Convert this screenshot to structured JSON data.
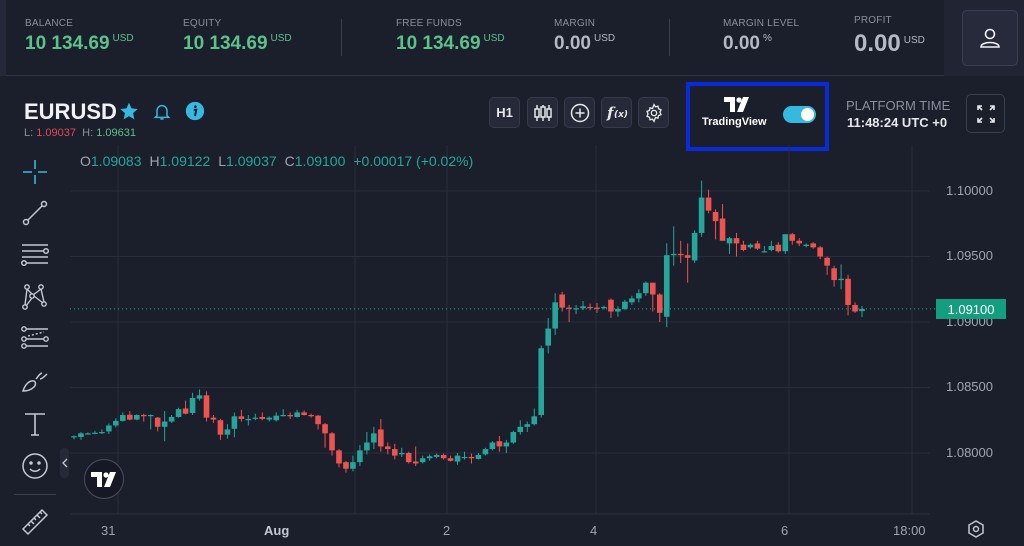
{
  "account": {
    "balance": {
      "label": "BALANCE",
      "value": "10 134.69",
      "unit": "USD"
    },
    "equity": {
      "label": "EQUITY",
      "value": "10 134.69",
      "unit": "USD"
    },
    "free_funds": {
      "label": "FREE FUNDS",
      "value": "10 134.69",
      "unit": "USD"
    },
    "margin": {
      "label": "MARGIN",
      "value": "0.00",
      "unit": "USD"
    },
    "margin_level": {
      "label": "MARGIN LEVEL",
      "value": "0.00",
      "unit": "%"
    },
    "profit": {
      "label": "PROFIT",
      "value": "0.00",
      "unit": "USD"
    }
  },
  "instrument": {
    "symbol": "EURUSD",
    "low_label": "L:",
    "low": "1.09037",
    "high_label": "H:",
    "high": "1.09631"
  },
  "toolbar": {
    "timeframe": "H1",
    "icons": [
      "candles-icon",
      "add-icon",
      "indicators-icon",
      "settings-icon"
    ],
    "tradingview_label": "TradingView",
    "tradingview_enabled": true,
    "platform_time_label": "PLATFORM TIME",
    "platform_time": "11:48:24 UTC +0"
  },
  "ohlc": {
    "o_label": "O",
    "o": "1.09083",
    "h_label": "H",
    "h": "1.09122",
    "l_label": "L",
    "l": "1.09037",
    "c_label": "C",
    "c": "1.09100",
    "change": "+0.00017 (+0.02%)"
  },
  "drawing_tools": [
    "crosshair-icon",
    "trend-line-icon",
    "horizontal-lines-icon",
    "pattern-icon",
    "fib-icon",
    "brush-icon",
    "text-icon",
    "emoji-icon",
    "ruler-icon"
  ],
  "colors": {
    "up": "#26a69a",
    "down": "#ef5350",
    "accent": "#36b9e0",
    "highlight_box": "#0a2bd8",
    "price_tag": "#139e80"
  },
  "chart_data": {
    "type": "candlestick",
    "symbol": "EURUSD",
    "timeframe": "H1",
    "y_ticks": [
      "1.10000",
      "1.09500",
      "1.09000",
      "1.08500",
      "1.08000"
    ],
    "x_ticks": [
      "31",
      "Aug",
      "2",
      "4",
      "6",
      "18:00"
    ],
    "last_price": "1.09100",
    "ylim": [
      1.0758,
      1.1063
    ],
    "candles": [
      [
        1.08122,
        1.08128,
        1.08135,
        1.08105
      ],
      [
        1.08122,
        1.0815,
        1.0816,
        1.081
      ],
      [
        1.08148,
        1.0815,
        1.08158,
        1.0814
      ],
      [
        1.0815,
        1.08155,
        1.0817,
        1.08143
      ],
      [
        1.08155,
        1.0816,
        1.0818,
        1.08145
      ],
      [
        1.08165,
        1.0821,
        1.08225,
        1.08145
      ],
      [
        1.0821,
        1.08245,
        1.08265,
        1.08195
      ],
      [
        1.08245,
        1.0829,
        1.0831,
        1.0824
      ],
      [
        1.08292,
        1.08255,
        1.0832,
        1.0825
      ],
      [
        1.08255,
        1.0829,
        1.08295,
        1.0825
      ],
      [
        1.0829,
        1.08285,
        1.083,
        1.0824
      ],
      [
        1.08285,
        1.0829,
        1.08295,
        1.0818
      ],
      [
        1.0827,
        1.082,
        1.08275,
        1.08165
      ],
      [
        1.082,
        1.0824,
        1.0832,
        1.0809
      ],
      [
        1.0824,
        1.08275,
        1.0829,
        1.0823
      ],
      [
        1.08275,
        1.08335,
        1.08345,
        1.0827
      ],
      [
        1.0834,
        1.083,
        1.084,
        1.08295
      ],
      [
        1.08305,
        1.0842,
        1.0846,
        1.0829
      ],
      [
        1.08415,
        1.0844,
        1.08485,
        1.084
      ],
      [
        1.0844,
        1.0827,
        1.0847,
        1.0824
      ],
      [
        1.0827,
        1.08255,
        1.0829,
        1.0823
      ],
      [
        1.0825,
        1.0814,
        1.0826,
        1.081
      ],
      [
        1.0814,
        1.0818,
        1.0822,
        1.0811
      ],
      [
        1.08185,
        1.0828,
        1.0831,
        1.0812
      ],
      [
        1.0828,
        1.0826,
        1.0833,
        1.0824
      ],
      [
        1.0825,
        1.0826,
        1.0829,
        1.0821
      ],
      [
        1.08265,
        1.0827,
        1.083,
        1.0825
      ],
      [
        1.08275,
        1.0826,
        1.0831,
        1.0825
      ],
      [
        1.08255,
        1.0827,
        1.0828,
        1.0824
      ],
      [
        1.0825,
        1.08285,
        1.0831,
        1.0824
      ],
      [
        1.08285,
        1.0829,
        1.08335,
        1.0828
      ],
      [
        1.0829,
        1.0828,
        1.0831,
        1.0826
      ],
      [
        1.08275,
        1.0831,
        1.0833,
        1.0827
      ],
      [
        1.0831,
        1.0829,
        1.08325,
        1.08285
      ],
      [
        1.0829,
        1.08285,
        1.083,
        1.0827
      ],
      [
        1.08285,
        1.0822,
        1.0829,
        1.0818
      ],
      [
        1.0822,
        1.0815,
        1.0823,
        1.0804
      ],
      [
        1.0815,
        1.0802,
        1.0816,
        1.0798
      ],
      [
        1.0802,
        1.0792,
        1.0803,
        1.0789
      ],
      [
        1.0793,
        1.0788,
        1.0794,
        1.0785
      ],
      [
        1.0788,
        1.0793,
        1.0798,
        1.0786
      ],
      [
        1.0793,
        1.0802,
        1.0806,
        1.079
      ],
      [
        1.0802,
        1.0808,
        1.0816,
        1.0799
      ],
      [
        1.0808,
        1.0815,
        1.082,
        1.0803
      ],
      [
        1.0818,
        1.0805,
        1.0826,
        1.0801
      ],
      [
        1.0805,
        1.0803,
        1.0808,
        1.0799
      ],
      [
        1.0803,
        1.0798,
        1.0807,
        1.0795
      ],
      [
        1.0799,
        1.08,
        1.0804,
        1.0797
      ],
      [
        1.08,
        1.0793,
        1.0801,
        1.0792
      ],
      [
        1.07935,
        1.0792,
        1.0805,
        1.079
      ],
      [
        1.0793,
        1.0796,
        1.0798,
        1.0792
      ],
      [
        1.0796,
        1.07975,
        1.0799,
        1.0794
      ],
      [
        1.0797,
        1.07985,
        1.07995,
        1.0796
      ],
      [
        1.07985,
        1.0796,
        1.07995,
        1.0795
      ],
      [
        1.0796,
        1.0794,
        1.0798,
        1.07935
      ],
      [
        1.07935,
        1.0798,
        1.08,
        1.0791
      ],
      [
        1.0797,
        1.0797,
        1.0801,
        1.0795
      ],
      [
        1.0797,
        1.0796,
        1.07995,
        1.0792
      ],
      [
        1.07955,
        1.07985,
        1.08,
        1.0795
      ],
      [
        1.0799,
        1.0803,
        1.0804,
        1.0798
      ],
      [
        1.0803,
        1.0808,
        1.0809,
        1.0802
      ],
      [
        1.0809,
        1.0805,
        1.0813,
        1.0801
      ],
      [
        1.0805,
        1.0808,
        1.081,
        1.08
      ],
      [
        1.0808,
        1.0816,
        1.0817,
        1.0807
      ],
      [
        1.0816,
        1.082,
        1.0825,
        1.0814
      ],
      [
        1.082,
        1.0822,
        1.0824,
        1.0816
      ],
      [
        1.0822,
        1.0828,
        1.0834,
        1.0821
      ],
      [
        1.0829,
        1.088,
        1.0882,
        1.0827
      ],
      [
        1.0882,
        1.0895,
        1.0903,
        1.0876
      ],
      [
        1.0895,
        1.0915,
        1.0922,
        1.089
      ],
      [
        1.0921,
        1.0911,
        1.0923,
        1.0908
      ],
      [
        1.0911,
        1.09105,
        1.0913,
        1.09
      ],
      [
        1.091,
        1.09105,
        1.0913,
        1.0906
      ],
      [
        1.09105,
        1.0912,
        1.0916,
        1.0909
      ],
      [
        1.09115,
        1.0911,
        1.0914,
        1.0909
      ],
      [
        1.0911,
        1.091,
        1.09145,
        1.0907
      ],
      [
        1.0911,
        1.09115,
        1.09125,
        1.09095
      ],
      [
        1.0917,
        1.0908,
        1.0918,
        1.0903
      ],
      [
        1.0908,
        1.091,
        1.0912,
        1.0904
      ],
      [
        1.091,
        1.09155,
        1.0917,
        1.0909
      ],
      [
        1.0915,
        1.0918,
        1.092,
        1.0913
      ],
      [
        1.0918,
        1.0922,
        1.0925,
        1.0915
      ],
      [
        1.0922,
        1.093,
        1.0931,
        1.092
      ],
      [
        1.093,
        1.0921,
        1.093,
        1.0908
      ],
      [
        1.0921,
        1.0907,
        1.0922,
        1.09
      ],
      [
        1.0904,
        1.0951,
        1.096,
        1.0896
      ],
      [
        1.0951,
        1.0952,
        1.0973,
        1.0943
      ],
      [
        1.0952,
        1.0951,
        1.0962,
        1.0945
      ],
      [
        1.0951,
        1.0949,
        1.096,
        1.093
      ],
      [
        1.0947,
        1.0968,
        1.097,
        1.0945
      ],
      [
        1.0968,
        1.0995,
        1.1008,
        1.0965
      ],
      [
        1.0995,
        1.0985,
        1.1001,
        1.0983
      ],
      [
        1.0984,
        1.0977,
        1.0986,
        1.0963
      ],
      [
        1.0979,
        1.0962,
        1.099,
        1.0962
      ],
      [
        1.096,
        1.0964,
        1.0965,
        1.0952
      ],
      [
        1.0964,
        1.096,
        1.0968,
        1.095
      ],
      [
        1.0959,
        1.0955,
        1.0962,
        1.0954
      ],
      [
        1.0957,
        1.0959,
        1.096,
        1.0956
      ],
      [
        1.096,
        1.0956,
        1.0962,
        1.0955
      ],
      [
        1.0954,
        1.0954,
        1.0958,
        1.0953
      ],
      [
        1.0955,
        1.0958,
        1.0962,
        1.0954
      ],
      [
        1.0959,
        1.0954,
        1.0961,
        1.0953
      ],
      [
        1.0954,
        1.0967,
        1.0967,
        1.0952
      ],
      [
        1.0967,
        1.0962,
        1.0968,
        1.0959
      ],
      [
        1.0962,
        1.096,
        1.0964,
        1.0958
      ],
      [
        1.0958,
        1.0959,
        1.096,
        1.0957
      ],
      [
        1.096,
        1.0957,
        1.0961,
        1.0956
      ],
      [
        1.0957,
        1.095,
        1.0958,
        1.0948
      ],
      [
        1.0949,
        1.0943,
        1.095,
        1.0936
      ],
      [
        1.0941,
        1.0932,
        1.0943,
        1.0927
      ],
      [
        1.0932,
        1.0933,
        1.0944,
        1.0925
      ],
      [
        1.0933,
        1.0913,
        1.0936,
        1.0905
      ],
      [
        1.0913,
        1.0908,
        1.0915,
        1.0907
      ],
      [
        1.09083,
        1.091,
        1.09122,
        1.09037
      ]
    ]
  }
}
